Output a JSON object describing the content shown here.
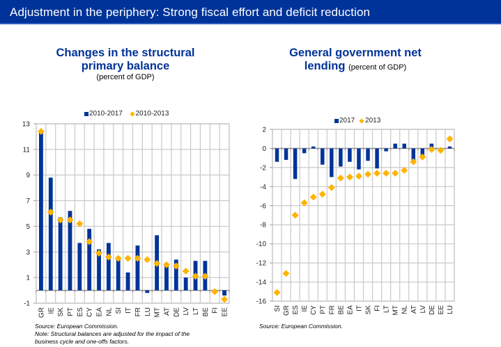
{
  "header": {
    "title": "Adjustment in the periphery: Strong fiscal effort and deficit reduction"
  },
  "colors": {
    "banner": "#003399",
    "bar": "#003399",
    "marker": "#ffb400",
    "grid": "#c8c8c8"
  },
  "left": {
    "title_line1": "Changes in the structural",
    "title_line2": "primary balance",
    "subtitle": "(percent of GDP)",
    "legend": {
      "bar": "2010-2017",
      "marker": "2010-2013"
    },
    "note_source": "Source: European Commission.",
    "note_text": "Note: Structural balances are adjusted for the impact of the",
    "note_text2": "business cycle and one-offs factors."
  },
  "right": {
    "title_line1": "General government net",
    "title_line2": "lending",
    "subtitle": "(percent of GDP)",
    "legend": {
      "bar": "2017",
      "marker": "2013"
    },
    "note_source": "Source: European Commission."
  },
  "chart_data": [
    {
      "type": "bar",
      "title": "Changes in the structural primary balance (percent of GDP)",
      "xlabel": "",
      "ylabel": "",
      "ylim": [
        -1,
        13
      ],
      "yticks": [
        -1,
        1,
        3,
        5,
        7,
        9,
        11,
        13
      ],
      "grid": true,
      "legend_position": "top-center",
      "categories": [
        "GR",
        "IE",
        "SK",
        "PT",
        "ES",
        "CY",
        "EA",
        "NL",
        "SI",
        "IT",
        "FR",
        "LU",
        "MT",
        "AT",
        "DE",
        "LV",
        "LT",
        "BE",
        "FI",
        "EE"
      ],
      "series": [
        {
          "name": "2010-2017",
          "kind": "bar",
          "values": [
            12.4,
            8.8,
            5.7,
            6.2,
            3.7,
            4.8,
            3.2,
            3.7,
            2.5,
            1.4,
            3.5,
            -0.2,
            4.3,
            2.1,
            2.4,
            1.0,
            2.3,
            2.3,
            0.0,
            -0.4
          ]
        },
        {
          "name": "2010-2013",
          "kind": "marker",
          "values": [
            12.4,
            6.1,
            5.5,
            5.5,
            5.2,
            3.8,
            2.9,
            2.6,
            2.5,
            2.5,
            2.5,
            2.4,
            2.1,
            2.0,
            1.9,
            1.5,
            1.1,
            1.1,
            -0.1,
            -0.7
          ]
        }
      ]
    },
    {
      "type": "bar",
      "title": "General government net lending (percent of GDP)",
      "xlabel": "",
      "ylabel": "",
      "ylim": [
        -16,
        2
      ],
      "yticks": [
        -16,
        -14,
        -12,
        -10,
        -8,
        -6,
        -4,
        -2,
        0,
        2
      ],
      "grid": true,
      "legend_position": "top-center",
      "categories": [
        "SI",
        "GR",
        "ES",
        "IE",
        "CY",
        "PT",
        "FR",
        "BE",
        "EA",
        "IT",
        "SK",
        "FI",
        "LT",
        "MT",
        "NL",
        "AT",
        "LV",
        "DE",
        "EE",
        "LU"
      ],
      "series": [
        {
          "name": "2017",
          "kind": "bar",
          "values": [
            -1.4,
            -1.2,
            -3.2,
            -0.5,
            0.2,
            -1.7,
            -3.0,
            -1.9,
            -1.4,
            -2.2,
            -1.3,
            -2.1,
            -0.3,
            0.5,
            0.5,
            -1.3,
            -0.8,
            0.5,
            0.0,
            0.2
          ]
        },
        {
          "name": "2013",
          "kind": "marker",
          "values": [
            -15.1,
            -13.1,
            -7.0,
            -5.7,
            -5.1,
            -4.8,
            -4.1,
            -3.1,
            -3.0,
            -2.9,
            -2.7,
            -2.6,
            -2.6,
            -2.6,
            -2.3,
            -1.4,
            -0.9,
            -0.1,
            -0.2,
            1.0
          ]
        }
      ]
    }
  ]
}
